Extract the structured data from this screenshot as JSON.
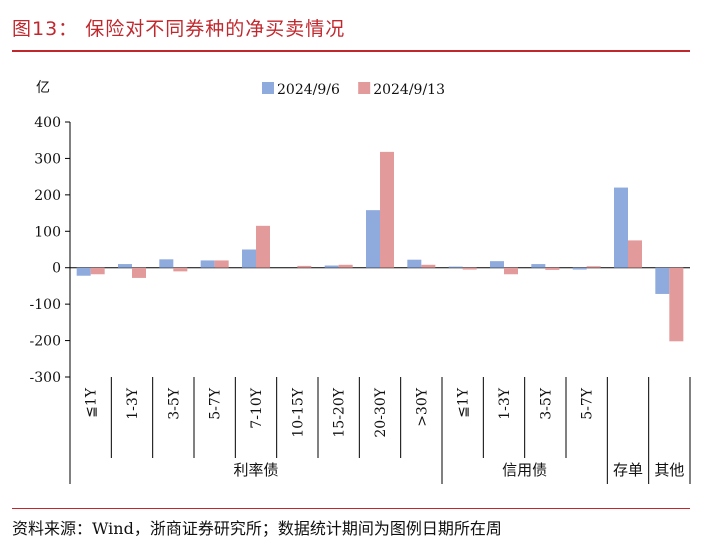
{
  "header": {
    "title": "图13：  保险对不同券种的净买卖情况"
  },
  "footer": {
    "source": "资料来源：Wind，浙商证券研究所；数据统计期间为图例日期所在周"
  },
  "chart_data": {
    "type": "bar",
    "unit_label": "亿",
    "ylim": [
      -300,
      400
    ],
    "yticks": [
      400,
      300,
      200,
      100,
      0,
      -100,
      -200,
      -300
    ],
    "categories": [
      "≦1Y",
      "1-3Y",
      "3-5Y",
      "5-7Y",
      "7-10Y",
      "10-15Y",
      "15-20Y",
      "20-30Y",
      ">30Y",
      "≦1Y",
      "1-3Y",
      "3-5Y",
      "5-7Y",
      "",
      ""
    ],
    "groups": [
      {
        "label": "利率债",
        "start": 0,
        "end": 8
      },
      {
        "label": "信用债",
        "start": 9,
        "end": 12
      },
      {
        "label": "存单",
        "start": 13,
        "end": 13
      },
      {
        "label": "其他",
        "start": 14,
        "end": 14
      }
    ],
    "series": [
      {
        "name": "2024/9/6",
        "color": "#8faadc",
        "values": [
          -22,
          10,
          23,
          20,
          50,
          0,
          6,
          158,
          22,
          3,
          18,
          10,
          -5,
          220,
          -72
        ]
      },
      {
        "name": "2024/9/13",
        "color": "#e39a9a",
        "values": [
          -18,
          -28,
          -10,
          20,
          115,
          5,
          8,
          318,
          8,
          -5,
          -18,
          -6,
          4,
          75,
          -202
        ]
      }
    ],
    "legend_position": "top",
    "grid": false
  }
}
